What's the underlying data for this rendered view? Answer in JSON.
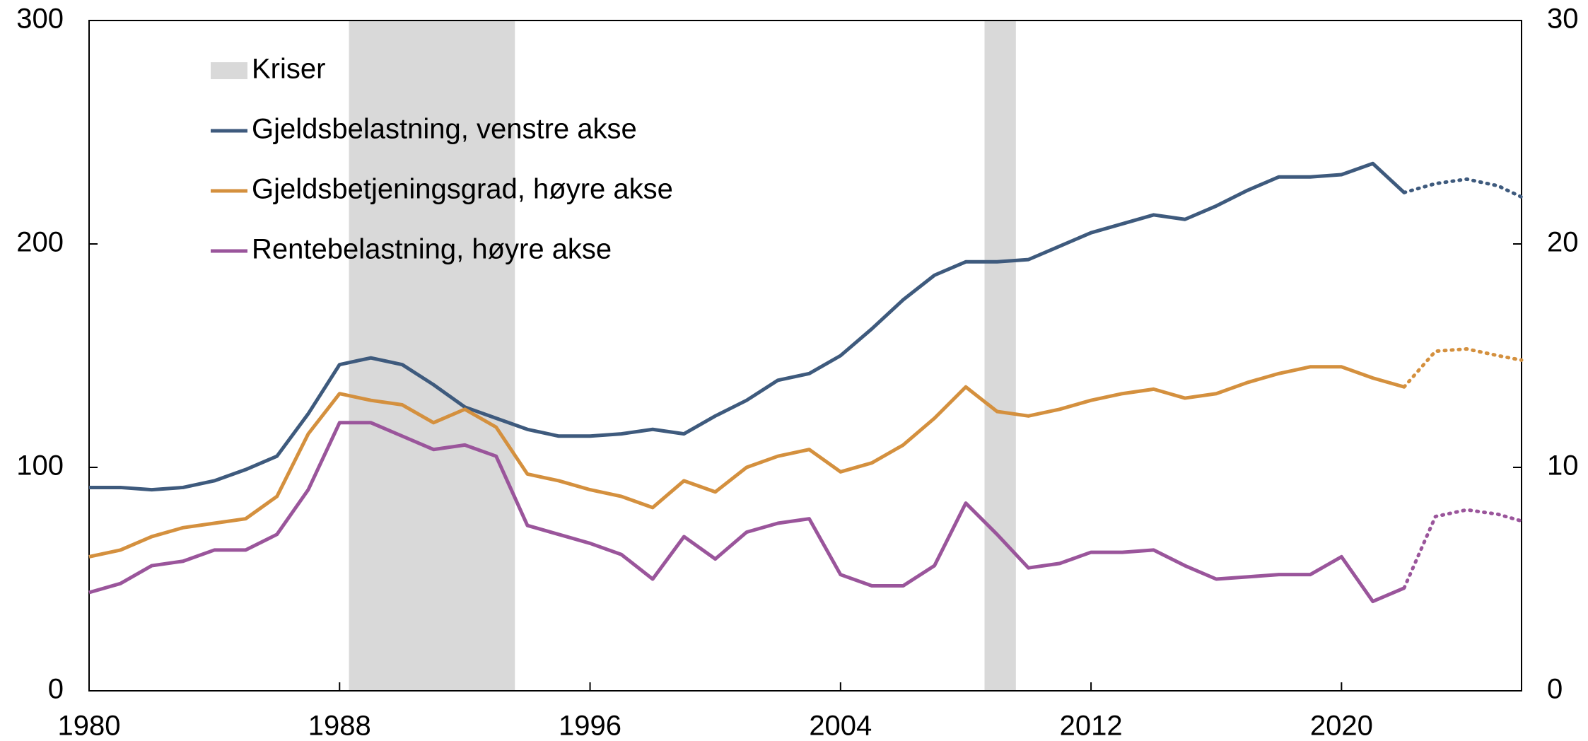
{
  "chart_data": {
    "type": "line",
    "x": [
      1980,
      1981,
      1982,
      1983,
      1984,
      1985,
      1986,
      1987,
      1988,
      1989,
      1990,
      1991,
      1992,
      1993,
      1994,
      1995,
      1996,
      1997,
      1998,
      1999,
      2000,
      2001,
      2002,
      2003,
      2004,
      2005,
      2006,
      2007,
      2008,
      2009,
      2010,
      2011,
      2012,
      2013,
      2014,
      2015,
      2016,
      2017,
      2018,
      2019,
      2020,
      2021,
      2022,
      2023,
      2024,
      2025,
      2025.75
    ],
    "series": [
      {
        "name": "Gjeldsbelastning, venstre akse",
        "color": "#3e5a7d",
        "axis": "y",
        "values": [
          91,
          91,
          90,
          91,
          94,
          99,
          105,
          124,
          146,
          149,
          146,
          137,
          127,
          122,
          117,
          114,
          114,
          115,
          117,
          115,
          123,
          130,
          139,
          142,
          150,
          162,
          175,
          186,
          192,
          192,
          193,
          199,
          205,
          209,
          213,
          211,
          217,
          224,
          230,
          230,
          231,
          236,
          223,
          null,
          null,
          null,
          null
        ],
        "projection": [
          null,
          null,
          null,
          null,
          null,
          null,
          null,
          null,
          null,
          null,
          null,
          null,
          null,
          null,
          null,
          null,
          null,
          null,
          null,
          null,
          null,
          null,
          null,
          null,
          null,
          null,
          null,
          null,
          null,
          null,
          null,
          null,
          null,
          null,
          null,
          null,
          null,
          null,
          null,
          null,
          null,
          null,
          223,
          227,
          229,
          226,
          221
        ]
      },
      {
        "name": "Gjeldsbetjeningsgrad, høyre akse",
        "color": "#d4903e",
        "axis": "y2",
        "values": [
          6.0,
          6.3,
          6.9,
          7.3,
          7.5,
          7.7,
          8.7,
          11.5,
          13.3,
          13.0,
          12.8,
          12.0,
          12.6,
          11.8,
          9.7,
          9.4,
          9.0,
          8.7,
          8.2,
          9.4,
          8.9,
          10.0,
          10.5,
          10.8,
          9.8,
          10.2,
          11.0,
          12.2,
          13.6,
          12.5,
          12.3,
          12.6,
          13.0,
          13.3,
          13.5,
          13.1,
          13.3,
          13.8,
          14.2,
          14.5,
          14.5,
          14.0,
          13.6,
          null,
          null,
          null,
          null
        ],
        "projection": [
          null,
          null,
          null,
          null,
          null,
          null,
          null,
          null,
          null,
          null,
          null,
          null,
          null,
          null,
          null,
          null,
          null,
          null,
          null,
          null,
          null,
          null,
          null,
          null,
          null,
          null,
          null,
          null,
          null,
          null,
          null,
          null,
          null,
          null,
          null,
          null,
          null,
          null,
          null,
          null,
          null,
          null,
          13.6,
          15.2,
          15.3,
          15.0,
          14.8
        ]
      },
      {
        "name": "Rentebelastning, høyre akse",
        "color": "#9a559b",
        "axis": "y2",
        "values": [
          4.4,
          4.8,
          5.6,
          5.8,
          6.3,
          6.3,
          7.0,
          9.0,
          12.0,
          12.0,
          11.4,
          10.8,
          11.0,
          10.5,
          7.4,
          7.0,
          6.6,
          6.1,
          5.0,
          6.9,
          5.9,
          7.1,
          7.5,
          7.7,
          5.2,
          4.7,
          4.7,
          5.6,
          8.4,
          7.0,
          5.5,
          5.7,
          6.2,
          6.2,
          6.3,
          5.6,
          5.0,
          5.1,
          5.2,
          5.2,
          6.0,
          4.0,
          4.6,
          null,
          null,
          null,
          null
        ],
        "projection": [
          null,
          null,
          null,
          null,
          null,
          null,
          null,
          null,
          null,
          null,
          null,
          null,
          null,
          null,
          null,
          null,
          null,
          null,
          null,
          null,
          null,
          null,
          null,
          null,
          null,
          null,
          null,
          null,
          null,
          null,
          null,
          null,
          null,
          null,
          null,
          null,
          null,
          null,
          null,
          null,
          null,
          null,
          4.6,
          7.8,
          8.1,
          7.9,
          7.6
        ]
      }
    ],
    "shaded": {
      "name": "Kriser",
      "color": "#d9d9d9",
      "spans": [
        [
          1988.3,
          1993.6
        ],
        [
          2008.6,
          2009.6
        ]
      ]
    },
    "xlim": [
      1980,
      2025.75
    ],
    "xticks": [
      1980,
      1988,
      1996,
      2004,
      2012,
      2020
    ],
    "ylim": [
      0,
      300
    ],
    "yticks": [
      0,
      100,
      200,
      300
    ],
    "y2lim": [
      0,
      30
    ],
    "y2ticks": [
      0,
      10,
      20,
      30
    ],
    "grid": false,
    "legend": "upper left"
  }
}
